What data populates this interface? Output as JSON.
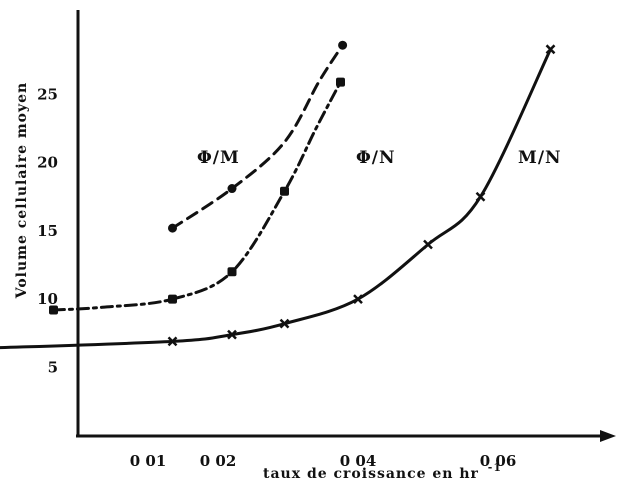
{
  "chart_data": {
    "type": "line",
    "title": "",
    "xlabel": "taux de croissance en hr",
    "xlabel_superscript": "-1",
    "ylabel": "Volume cellulaire moyen",
    "xlim": [
      0,
      0.07
    ],
    "ylim": [
      0,
      30
    ],
    "x_ticks": [
      {
        "value": 0.01,
        "label": "0 01"
      },
      {
        "value": 0.02,
        "label": "0 02"
      },
      {
        "value": 0.04,
        "label": "0 04"
      },
      {
        "value": 0.06,
        "label": "0 06"
      }
    ],
    "y_ticks": [
      {
        "value": 5,
        "label": "5"
      },
      {
        "value": 10,
        "label": "10"
      },
      {
        "value": 15,
        "label": "15"
      },
      {
        "value": 20,
        "label": "20"
      },
      {
        "value": 25,
        "label": "25"
      }
    ],
    "grid": false,
    "legend": "none",
    "series": [
      {
        "name": "Φ/M",
        "dash": "dashed",
        "marker": "dot",
        "color": "#111111",
        "points": [
          {
            "x": 0.0135,
            "y": 15.2,
            "marker": true
          },
          {
            "x": 0.022,
            "y": 18.1,
            "marker": true
          },
          {
            "x": 0.0295,
            "y": 21.5,
            "marker": false
          },
          {
            "x": 0.0345,
            "y": 26.0,
            "marker": false
          },
          {
            "x": 0.0378,
            "y": 28.6,
            "marker": true
          }
        ]
      },
      {
        "name": "Φ/N",
        "dash": "dash-dot",
        "marker": "square",
        "color": "#111111",
        "points": [
          {
            "x": -0.0035,
            "y": 9.2,
            "marker": true
          },
          {
            "x": 0.0035,
            "y": 9.4,
            "marker": false
          },
          {
            "x": 0.0135,
            "y": 10.0,
            "marker": true
          },
          {
            "x": 0.022,
            "y": 12.0,
            "marker": true
          },
          {
            "x": 0.0295,
            "y": 17.9,
            "marker": true
          },
          {
            "x": 0.034,
            "y": 22.5,
            "marker": false
          },
          {
            "x": 0.0375,
            "y": 25.9,
            "marker": true
          }
        ]
      },
      {
        "name": "M/N",
        "dash": "solid",
        "marker": "cross",
        "color": "#111111",
        "points": [
          {
            "x": -0.0135,
            "y": 6.4,
            "marker": false
          },
          {
            "x": 0.0135,
            "y": 6.9,
            "marker": true
          },
          {
            "x": 0.022,
            "y": 7.4,
            "marker": true
          },
          {
            "x": 0.0295,
            "y": 8.2,
            "marker": true
          },
          {
            "x": 0.04,
            "y": 10.0,
            "marker": true
          },
          {
            "x": 0.05,
            "y": 14.0,
            "marker": true
          },
          {
            "x": 0.0575,
            "y": 17.5,
            "marker": true
          },
          {
            "x": 0.0675,
            "y": 28.3,
            "marker": true
          }
        ]
      }
    ]
  }
}
